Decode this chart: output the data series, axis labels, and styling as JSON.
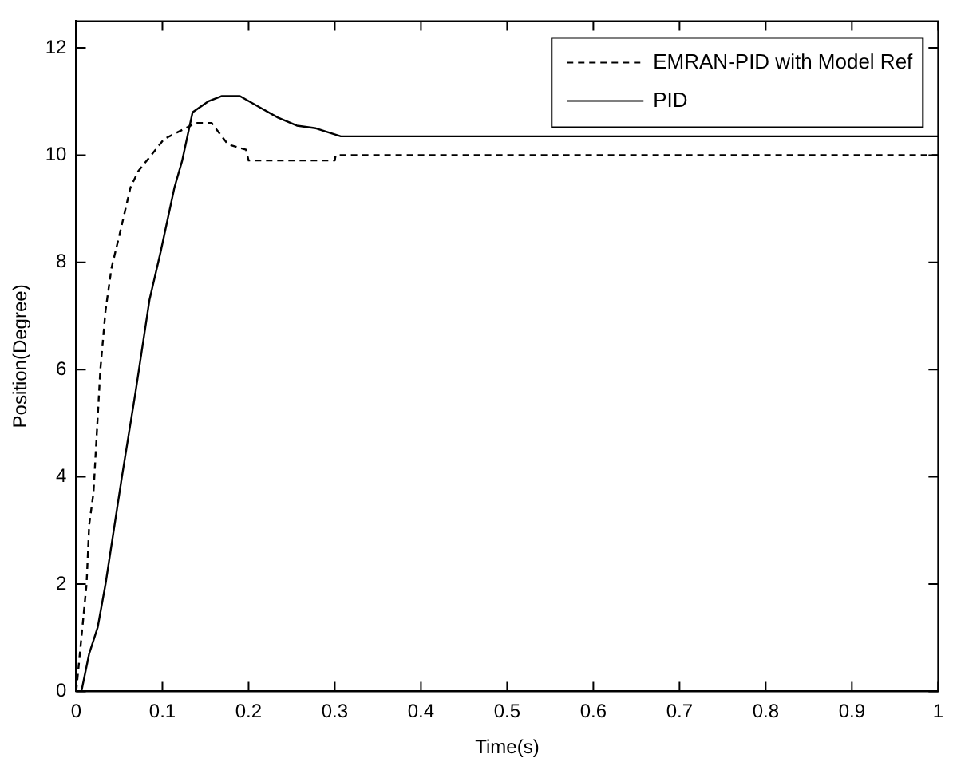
{
  "chart_data": {
    "type": "line",
    "xlabel": "Time(s)",
    "ylabel": "Position(Degree)",
    "xlim": [
      0,
      1
    ],
    "ylim": [
      0,
      12.5
    ],
    "xticks": [
      0,
      0.1,
      0.2,
      0.3,
      0.4,
      0.5,
      0.6,
      0.7,
      0.8,
      0.9,
      1
    ],
    "yticks": [
      0,
      2,
      4,
      6,
      8,
      10,
      12
    ],
    "grid": false,
    "legend": "top right",
    "marker": "none",
    "series": [
      {
        "name": "EMRAN-PID with Model Ref",
        "color": "#000000",
        "line_style": "dashed",
        "x": [
          0,
          0.006,
          0.012,
          0.015,
          0.02,
          0.028,
          0.034,
          0.041,
          0.05,
          0.063,
          0.072,
          0.102,
          0.139,
          0.157,
          0.176,
          0.197,
          0.2,
          0.3,
          0.301,
          1
        ],
        "values": [
          0,
          1.0,
          2.0,
          3.1,
          3.7,
          6.0,
          7.1,
          7.9,
          8.5,
          9.4,
          9.7,
          10.3,
          10.6,
          10.6,
          10.2,
          10.1,
          9.9,
          9.9,
          10.0,
          10.0
        ]
      },
      {
        "name": "PID",
        "color": "#000000",
        "line_style": "solid",
        "x": [
          0.006,
          0.015,
          0.025,
          0.034,
          0.053,
          0.069,
          0.085,
          0.098,
          0.114,
          0.123,
          0.135,
          0.153,
          0.169,
          0.19,
          0.212,
          0.234,
          0.256,
          0.278,
          0.307,
          1
        ],
        "values": [
          0,
          0.7,
          1.2,
          2.0,
          4.0,
          5.6,
          7.3,
          8.2,
          9.4,
          9.9,
          10.8,
          11.0,
          11.1,
          11.1,
          10.9,
          10.7,
          10.55,
          10.5,
          10.35,
          10.35
        ]
      }
    ]
  }
}
